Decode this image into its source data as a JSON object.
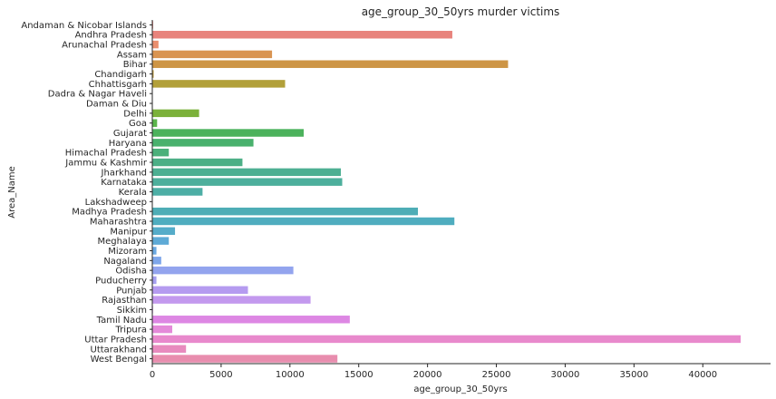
{
  "chart_data": {
    "type": "bar",
    "orientation": "horizontal",
    "title": "age_group_30_50yrs murder victims",
    "xlabel": "age_group_30_50yrs",
    "ylabel": "Area_Name",
    "xlim": [
      0,
      45000
    ],
    "xticks": [
      0,
      5000,
      10000,
      15000,
      20000,
      25000,
      30000,
      35000,
      40000
    ],
    "grid": false,
    "categories": [
      "Andaman & Nicobar Islands",
      "Andhra Pradesh",
      "Arunachal Pradesh",
      "Assam",
      "Bihar",
      "Chandigarh",
      "Chhattisgarh",
      "Dadra & Nagar Haveli",
      "Daman & Diu",
      "Delhi",
      "Goa",
      "Gujarat",
      "Haryana",
      "Himachal Pradesh",
      "Jammu & Kashmir",
      "Jharkhand",
      "Karnataka",
      "Kerala",
      "Lakshadweep",
      "Madhya Pradesh",
      "Maharashtra",
      "Manipur",
      "Meghalaya",
      "Mizoram",
      "Nagaland",
      "Odisha",
      "Puducherry",
      "Punjab",
      "Rajasthan",
      "Sikkim",
      "Tamil Nadu",
      "Tripura",
      "Uttar Pradesh",
      "Uttarakhand",
      "West Bengal"
    ],
    "values": [
      60,
      21800,
      450,
      8700,
      25850,
      100,
      9650,
      30,
      20,
      3400,
      350,
      11000,
      7350,
      1200,
      6550,
      13700,
      13800,
      3650,
      0,
      19300,
      21950,
      1650,
      1200,
      300,
      650,
      10250,
      300,
      6950,
      11500,
      50,
      14350,
      1450,
      42750,
      2450,
      13450
    ],
    "colors": [
      "#e8837c",
      "#e8837c",
      "#ea8f6e",
      "#d99451",
      "#cd9546",
      "#c09b3f",
      "#b2a03a",
      "#a3a53a",
      "#92ab38",
      "#7bb13a",
      "#5bb54b",
      "#4cb25c",
      "#49b16d",
      "#4bb07a",
      "#4caf86",
      "#4caf92",
      "#4daf9c",
      "#4daea5",
      "#4eaeae",
      "#4eadb6",
      "#4fadbf",
      "#55acc9",
      "#5eaad6",
      "#6aa8e1",
      "#7ea6ea",
      "#93a4ee",
      "#a59ff0",
      "#b59bf0",
      "#c399ee",
      "#d28dea",
      "#dd87e3",
      "#e48ad9",
      "#e889cc",
      "#e88bbe",
      "#e88dae"
    ]
  }
}
